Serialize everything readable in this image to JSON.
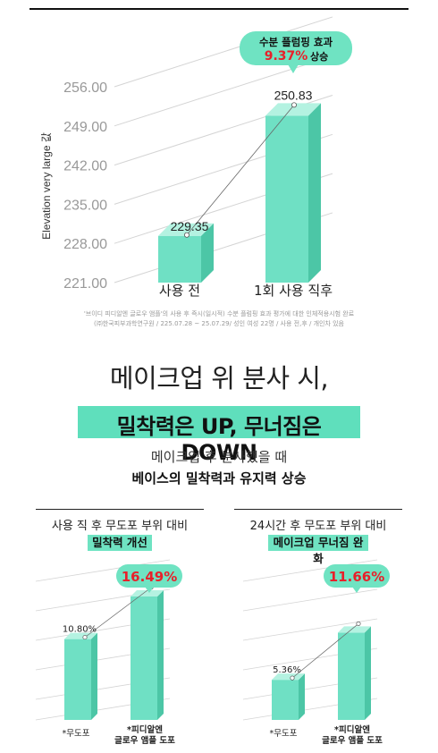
{
  "top_chart": {
    "ylabel": "Elevation very large 값",
    "callout": {
      "line1": "수분 플럼핑 효과",
      "value": "9.37%",
      "suffix": "상승"
    },
    "footnote_lines": [
      "'브이디 피디알엔 글로우 앰플'의 사용 후 즉시(일시적) 수분 플럼핑 효과 평가에 대한 인체적용시험 완료",
      "(㈜한국피부과학연구원 / 225.07.28 ~ 25.07.29/ 성인 여성 22명 / 사용 전,후 / 개인차 있음"
    ]
  },
  "headline": "메이크업 위 분사 시,",
  "banner": "밀착력은 UP, 무너짐은 DOWN",
  "subtitle1": "메이크업 후 분사했을 때",
  "subtitle2": "베이스의 밀착력과 유지력 상승",
  "panel_left": {
    "title": "사용 직 후 무도포 부위 대비",
    "tag": "밀착력 개선",
    "callout": "16.49%"
  },
  "panel_right": {
    "title": "24시간 후 무도포 부위 대비",
    "tag": "메이크업 무너짐 완화",
    "callout": "11.66%"
  },
  "colors": {
    "bar_front": "#6fe0c4",
    "bar_side": "#4cc6a6",
    "bar_top": "#b4f2e1",
    "callout_bg": "#6fe3c2",
    "highlight_red": "#e8202a",
    "grid": "#d4d4d4"
  },
  "chart_data": [
    {
      "type": "bar",
      "categories": [
        "사용 전",
        "1회 사용 직후"
      ],
      "values": [
        229.35,
        250.83
      ],
      "ylabel": "Elevation very large 값",
      "yticks": [
        "221.00",
        "228.00",
        "235.00",
        "242.00",
        "249.00",
        "256.00"
      ],
      "ylim": [
        221,
        256
      ],
      "data_labels": [
        "229.35",
        "250.83"
      ]
    },
    {
      "type": "bar",
      "title": "사용 직 후 무도포 부위 대비",
      "categories": [
        "*무도포",
        "*피디알엔 글로우 앰플 도포"
      ],
      "values": [
        10.8,
        16.49
      ],
      "data_labels": [
        "10.80%",
        "16.49%"
      ]
    },
    {
      "type": "bar",
      "title": "24시간 후 무도포 부위 대비",
      "categories": [
        "*무도포",
        "*피디알엔 글로우 앰플 도포"
      ],
      "values": [
        5.36,
        11.66
      ],
      "data_labels": [
        "5.36%",
        "11.66%"
      ]
    }
  ],
  "small_cat_labels": {
    "left1": "*무도포",
    "left2a": "*피디알엔",
    "left2b": "글로우 앰플 도포",
    "right1": "*무도포",
    "right2a": "*피디알엔",
    "right2b": "글로우 앰플 도포"
  }
}
